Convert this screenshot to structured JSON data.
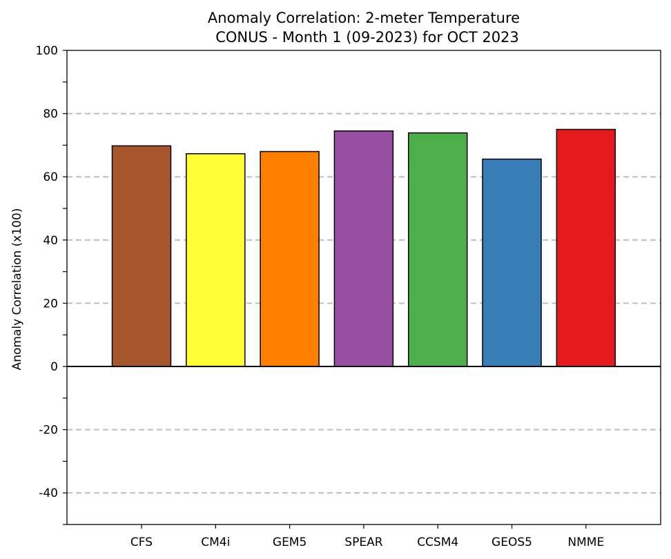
{
  "chart_data": {
    "type": "bar",
    "title": "Anomaly Correlation: 2-meter Temperature",
    "subtitle": "CONUS - Month 1 (09-2023) for OCT 2023",
    "xlabel": "",
    "ylabel": "Anomaly Correlation (x100)",
    "ylim": [
      -50,
      100
    ],
    "yticks": [
      "100",
      "80",
      "60",
      "40",
      "20",
      "0",
      "-20",
      "-40"
    ],
    "grid": "horizontal dashed at 80, 60, 40, 20, -20, -40",
    "categories": [
      "CFS",
      "CM4i",
      "GEM5",
      "SPEAR",
      "CCSM4",
      "GEOS5",
      "NMME"
    ],
    "values": [
      69.8,
      67.3,
      68.0,
      74.5,
      73.9,
      65.6,
      75.0
    ],
    "colors": [
      "#a6562a",
      "#ffff33",
      "#ff7f00",
      "#984ea3",
      "#4daf4a",
      "#377eb8",
      "#e41a1c"
    ]
  }
}
